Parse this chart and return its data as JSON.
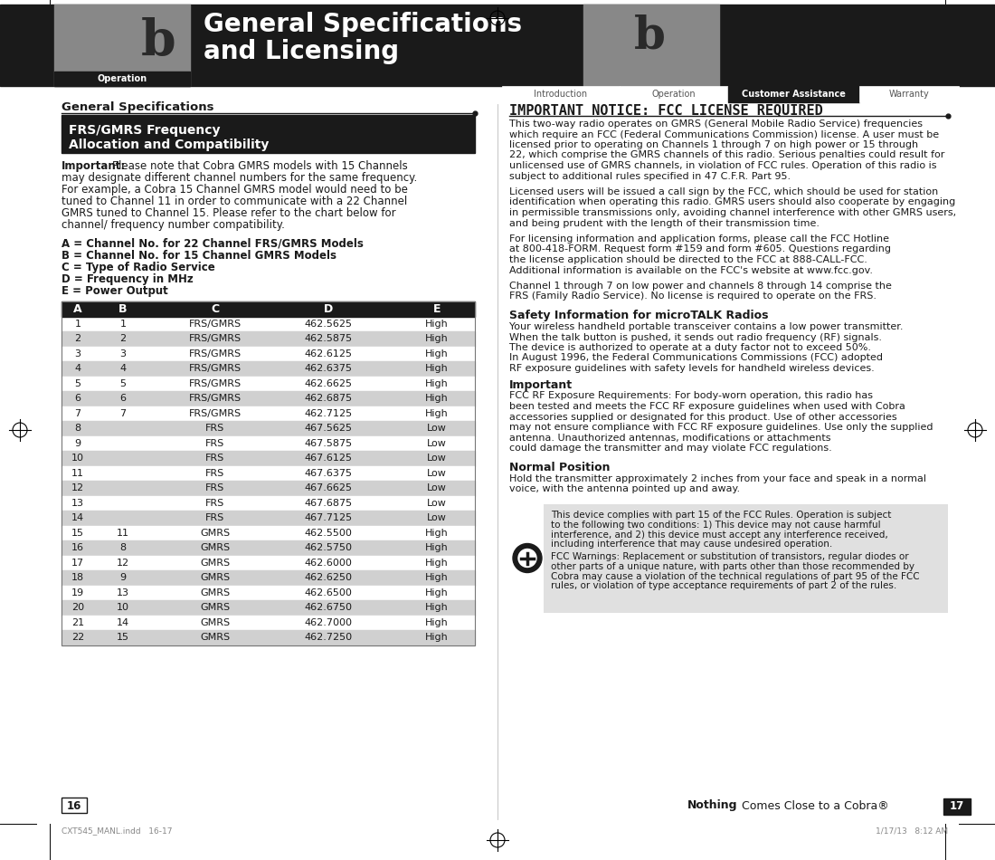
{
  "page_bg": "#ffffff",
  "header_bg": "#1a1a1a",
  "header_gray_bg": "#888888",
  "left_section_title": "General Specifications",
  "frs_box_line1": "FRS/GMRS Frequency",
  "frs_box_line2": "Allocation and Compatibility",
  "frs_box_bg": "#1a1a1a",
  "frs_box_fg": "#ffffff",
  "important_lines": [
    "Important: Please note that Cobra GMRS models with 15 Channels",
    "may designate different channel numbers for the same frequency.",
    "For example, a Cobra 15 Channel GMRS model would need to be",
    "tuned to Channel 11 in order to communicate with a 22 Channel",
    "GMRS tuned to Channel 15. Please refer to the chart below for",
    "channel/ frequency number compatibility."
  ],
  "legend_lines": [
    "A = Channel No. for 22 Channel FRS/GMRS Models",
    "B = Channel No. for 15 Channel GMRS Models",
    "C = Type of Radio Service",
    "D = Frequency in MHz",
    "E = Power Output"
  ],
  "table_header": [
    "A",
    "B",
    "C",
    "D",
    "E"
  ],
  "table_header_bg": "#1a1a1a",
  "table_header_fg": "#ffffff",
  "table_row_bg_even": "#d0d0d0",
  "table_row_bg_odd": "#ffffff",
  "table_rows": [
    [
      "1",
      "1",
      "FRS/GMRS",
      "462.5625",
      "High"
    ],
    [
      "2",
      "2",
      "FRS/GMRS",
      "462.5875",
      "High"
    ],
    [
      "3",
      "3",
      "FRS/GMRS",
      "462.6125",
      "High"
    ],
    [
      "4",
      "4",
      "FRS/GMRS",
      "462.6375",
      "High"
    ],
    [
      "5",
      "5",
      "FRS/GMRS",
      "462.6625",
      "High"
    ],
    [
      "6",
      "6",
      "FRS/GMRS",
      "462.6875",
      "High"
    ],
    [
      "7",
      "7",
      "FRS/GMRS",
      "462.7125",
      "High"
    ],
    [
      "8",
      "",
      "FRS",
      "467.5625",
      "Low"
    ],
    [
      "9",
      "",
      "FRS",
      "467.5875",
      "Low"
    ],
    [
      "10",
      "",
      "FRS",
      "467.6125",
      "Low"
    ],
    [
      "11",
      "",
      "FRS",
      "467.6375",
      "Low"
    ],
    [
      "12",
      "",
      "FRS",
      "467.6625",
      "Low"
    ],
    [
      "13",
      "",
      "FRS",
      "467.6875",
      "Low"
    ],
    [
      "14",
      "",
      "FRS",
      "467.7125",
      "Low"
    ],
    [
      "15",
      "11",
      "GMRS",
      "462.5500",
      "High"
    ],
    [
      "16",
      "8",
      "GMRS",
      "462.5750",
      "High"
    ],
    [
      "17",
      "12",
      "GMRS",
      "462.6000",
      "High"
    ],
    [
      "18",
      "9",
      "GMRS",
      "462.6250",
      "High"
    ],
    [
      "19",
      "13",
      "GMRS",
      "462.6500",
      "High"
    ],
    [
      "20",
      "10",
      "GMRS",
      "462.6750",
      "High"
    ],
    [
      "21",
      "14",
      "GMRS",
      "462.7000",
      "High"
    ],
    [
      "22",
      "15",
      "GMRS",
      "462.7250",
      "High"
    ]
  ],
  "right_notice_title": "IMPORTANT NOTICE: FCC LICENSE REQUIRED",
  "right_para1_lines": [
    "This two-way radio operates on GMRS (General Mobile Radio Service) frequencies",
    "which require an FCC (Federal Communications Commission) license. A user must be",
    "licensed prior to operating on Channels 1 through 7 on high power or 15 through",
    "22, which comprise the GMRS channels of this radio. Serious penalties could result for",
    "unlicensed use of GMRS channels, in violation of FCC rules. Operation of this radio is",
    "subject to additional rules specified in 47 C.F.R. Part 95."
  ],
  "right_para2_lines": [
    "Licensed users will be issued a call sign by the FCC, which should be used for station",
    "identification when operating this radio. GMRS users should also cooperate by engaging",
    "in permissible transmissions only, avoiding channel interference with other GMRS users,",
    "and being prudent with the length of their transmission time."
  ],
  "right_para3_lines": [
    "For licensing information and application forms, please call the FCC Hotline",
    "at 800-418-FORM. Request form #159 and form #605. Questions regarding",
    "the license application should be directed to the FCC at 888-CALL-FCC.",
    "Additional information is available on the FCC's website at www.fcc.gov."
  ],
  "right_para4_lines": [
    "Channel 1 through 7 on low power and channels 8 through 14 comprise the",
    "FRS (Family Radio Service). No license is required to operate on the FRS."
  ],
  "safety_title": "Safety Information for microTALK Radios",
  "safety_para_lines": [
    "Your wireless handheld portable transceiver contains a low power transmitter.",
    "When the talk button is pushed, it sends out radio frequency (RF) signals.",
    "The device is authorized to operate at a duty factor not to exceed 50%.",
    "In August 1996, the Federal Communications Commissions (FCC) adopted",
    "RF exposure guidelines with safety levels for handheld wireless devices."
  ],
  "important_label": "Important",
  "fcc_rf_lines": [
    "FCC RF Exposure Requirements: For body-worn operation, this radio has",
    "been tested and meets the FCC RF exposure guidelines when used with Cobra",
    "accessories supplied or designated for this product. Use of other accessories",
    "may not ensure compliance with FCC RF exposure guidelines. Use only the supplied",
    "antenna. Unauthorized antennas, modifications or attachments",
    "could damage the transmitter and may violate FCC regulations."
  ],
  "normal_pos_title": "Normal Position",
  "normal_pos_lines": [
    "Hold the transmitter approximately 2 inches from your face and speak in a normal",
    "voice, with the antenna pointed up and away."
  ],
  "gray_box1_lines": [
    "This device complies with part 15 of the FCC Rules. Operation is subject",
    "to the following two conditions: 1) This device may not cause harmful",
    "interference, and 2) this device must accept any interference received,",
    "including interference that may cause undesired operation."
  ],
  "gray_box2_lines": [
    "FCC Warnings: Replacement or substitution of transistors, regular diodes or",
    "other parts of a unique nature, with parts other than those recommended by",
    "Cobra may cause a violation of the technical regulations of part 95 of the FCC",
    "rules, or violation of type acceptance requirements of part 2 of the rules."
  ],
  "footer_left_page": "16",
  "footer_right_bold": "Nothing",
  "footer_right_rest": " Comes Close to a Cobra®",
  "footer_right_page": "17",
  "footer_file": "CXT545_MANL.indd   16-17",
  "footer_date": "1/17/13   8:12 AM",
  "nav_tabs": [
    "Introduction",
    "Operation",
    "Customer Assistance",
    "Warranty"
  ],
  "nav_active": "Customer Assistance",
  "header_tab_left": "Operation"
}
